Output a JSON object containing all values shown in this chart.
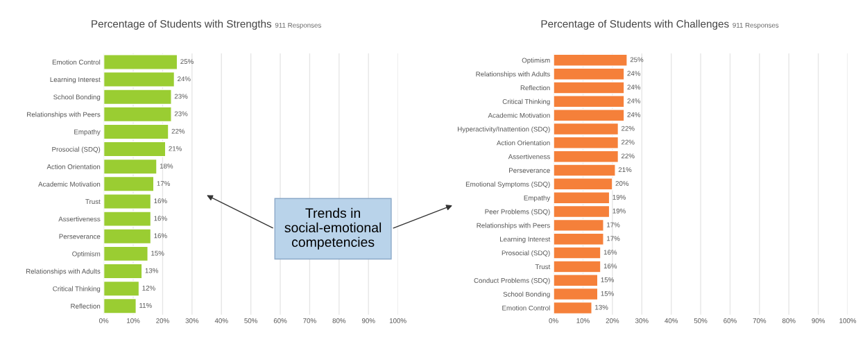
{
  "chart_data": [
    {
      "type": "bar",
      "orientation": "horizontal",
      "title": "Percentage of Students with Strengths",
      "subtitle": "911 Responses",
      "categories": [
        "Emotion Control",
        "Learning Interest",
        "School Bonding",
        "Relationships with Peers",
        "Empathy",
        "Prosocial (SDQ)",
        "Action Orientation",
        "Academic Motivation",
        "Trust",
        "Assertiveness",
        "Perseverance",
        "Optimism",
        "Relationships with Adults",
        "Critical Thinking",
        "Reflection"
      ],
      "values": [
        25,
        24,
        23,
        23,
        22,
        21,
        18,
        17,
        16,
        16,
        16,
        15,
        13,
        12,
        11
      ],
      "value_labels": [
        "25%",
        "24%",
        "23%",
        "23%",
        "22%",
        "21%",
        "18%",
        "17%",
        "16%",
        "16%",
        "16%",
        "15%",
        "13%",
        "12%",
        "11%"
      ],
      "color": "#9acd32",
      "grid": "x",
      "xlim": [
        0,
        100
      ],
      "xticks": [
        {
          "value": 0,
          "label": "0%"
        },
        {
          "value": 10,
          "label": "10%"
        },
        {
          "value": 20,
          "label": "20%"
        },
        {
          "value": 30,
          "label": "30%"
        },
        {
          "value": 40,
          "label": "40%"
        },
        {
          "value": 50,
          "label": "50%"
        },
        {
          "value": 60,
          "label": "60%"
        },
        {
          "value": 70,
          "label": "70%"
        },
        {
          "value": 80,
          "label": "80%"
        },
        {
          "value": 90,
          "label": "90%"
        },
        {
          "value": 100,
          "label": "100%"
        }
      ],
      "annotations": [
        "Trends in social-emotional competencies"
      ]
    },
    {
      "type": "bar",
      "orientation": "horizontal",
      "title": "Percentage of Students with Challenges",
      "subtitle": "911 Responses",
      "categories": [
        "Optimism",
        "Relationships with Adults",
        "Reflection",
        "Critical Thinking",
        "Academic Motivation",
        "Hyperactivity/Inattention (SDQ)",
        "Action Orientation",
        "Assertiveness",
        "Perseverance",
        "Emotional Symptoms (SDQ)",
        "Empathy",
        "Peer Problems (SDQ)",
        "Relationships with Peers",
        "Learning Interest",
        "Prosocial (SDQ)",
        "Trust",
        "Conduct Problems (SDQ)",
        "School Bonding",
        "Emotion Control"
      ],
      "values": [
        25,
        24,
        24,
        24,
        24,
        22,
        22,
        22,
        21,
        20,
        19,
        19,
        17,
        17,
        16,
        16,
        15,
        15,
        13
      ],
      "value_labels": [
        "25%",
        "24%",
        "24%",
        "24%",
        "24%",
        "22%",
        "22%",
        "22%",
        "21%",
        "20%",
        "19%",
        "19%",
        "17%",
        "17%",
        "16%",
        "16%",
        "15%",
        "15%",
        "13%"
      ],
      "color": "#f5803a",
      "grid": "x",
      "xlim": [
        0,
        100
      ],
      "xticks": [
        {
          "value": 0,
          "label": "0%"
        },
        {
          "value": 10,
          "label": "10%"
        },
        {
          "value": 20,
          "label": "20%"
        },
        {
          "value": 30,
          "label": "30%"
        },
        {
          "value": 40,
          "label": "40%"
        },
        {
          "value": 50,
          "label": "50%"
        },
        {
          "value": 60,
          "label": "60%"
        },
        {
          "value": 70,
          "label": "70%"
        },
        {
          "value": 80,
          "label": "80%"
        },
        {
          "value": 90,
          "label": "90%"
        },
        {
          "value": 100,
          "label": "100%"
        }
      ]
    }
  ]
}
